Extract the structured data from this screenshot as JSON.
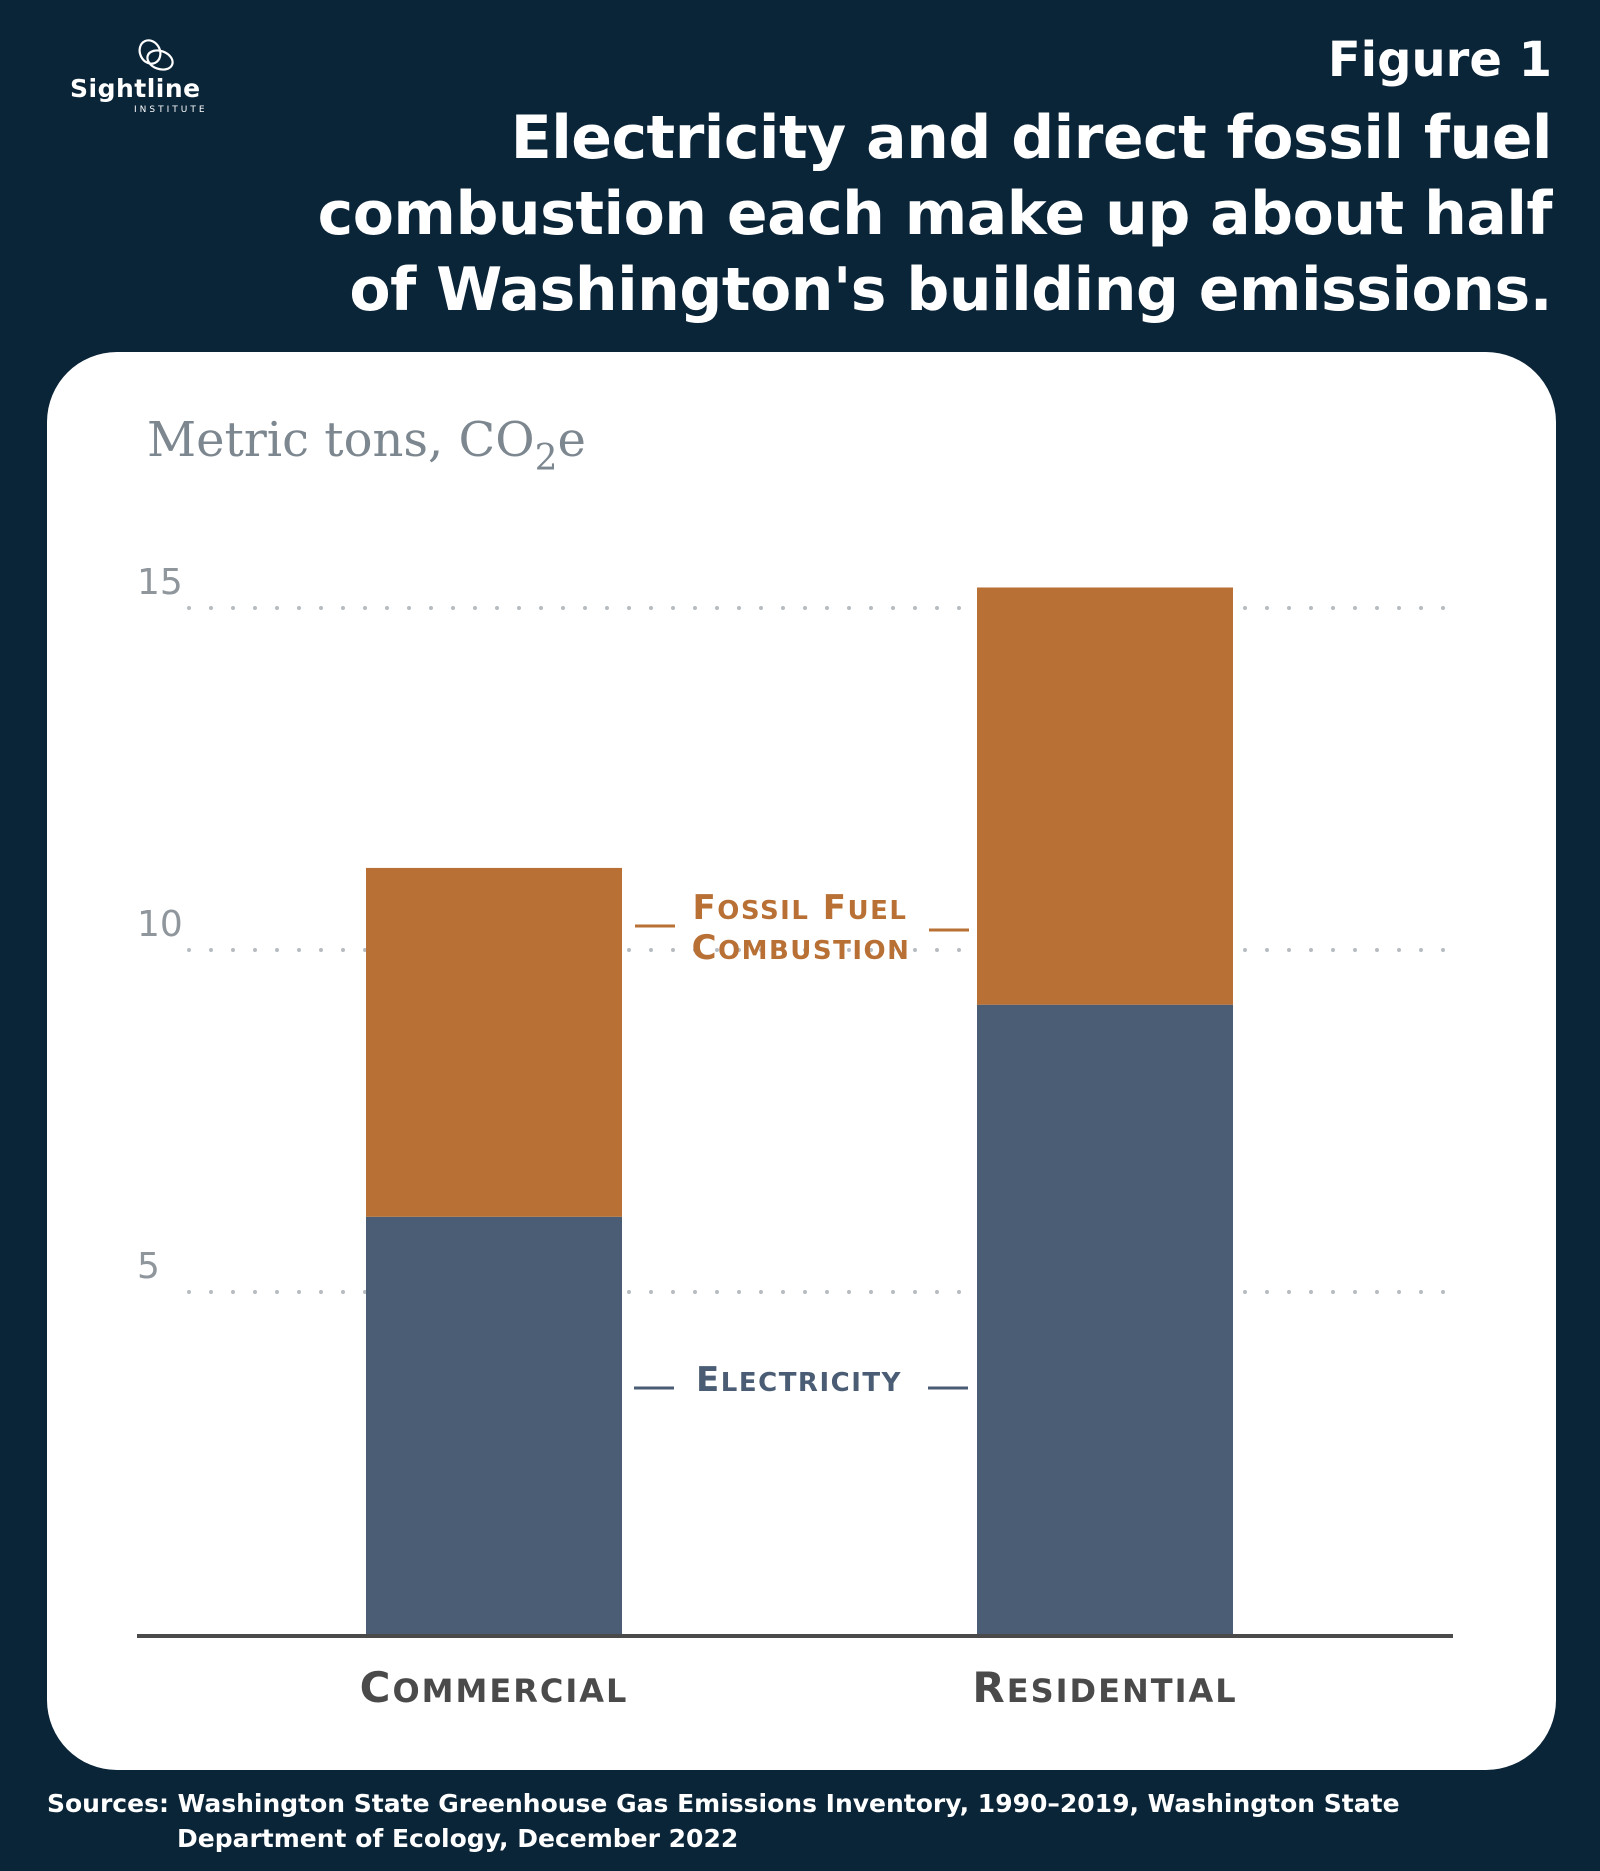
{
  "brand": {
    "name": "Sightline",
    "sub": "INSTITUTE"
  },
  "header": {
    "figure_label": "Figure 1",
    "title_lines": [
      "Electricity and direct fossil fuel",
      "combustion each make up about half",
      "of Washington's building emissions."
    ]
  },
  "chart_data": {
    "type": "bar",
    "stacked": true,
    "ylabel": "Metric tons, CO2e",
    "ylim": [
      0,
      15
    ],
    "yticks": [
      5,
      10,
      15
    ],
    "grid": "dotted horizontal",
    "categories": [
      "Commercial",
      "Residential"
    ],
    "series": [
      {
        "name": "Electricity",
        "values": [
          6.1,
          9.2
        ],
        "color": "#4a5d74"
      },
      {
        "name": "Fossil Fuel Combustion",
        "values": [
          5.1,
          6.1
        ],
        "color": "#b87035"
      }
    ],
    "annotations": {
      "fossil_line1": "Fossil Fuel",
      "fossil_line2": "Combustion",
      "electricity": "Electricity"
    }
  },
  "sources": {
    "line1": "Sources: Washington State Greenhouse Gas Emissions Inventory, 1990–2019, Washington State",
    "line2": "Department of Ecology, December 2022"
  }
}
